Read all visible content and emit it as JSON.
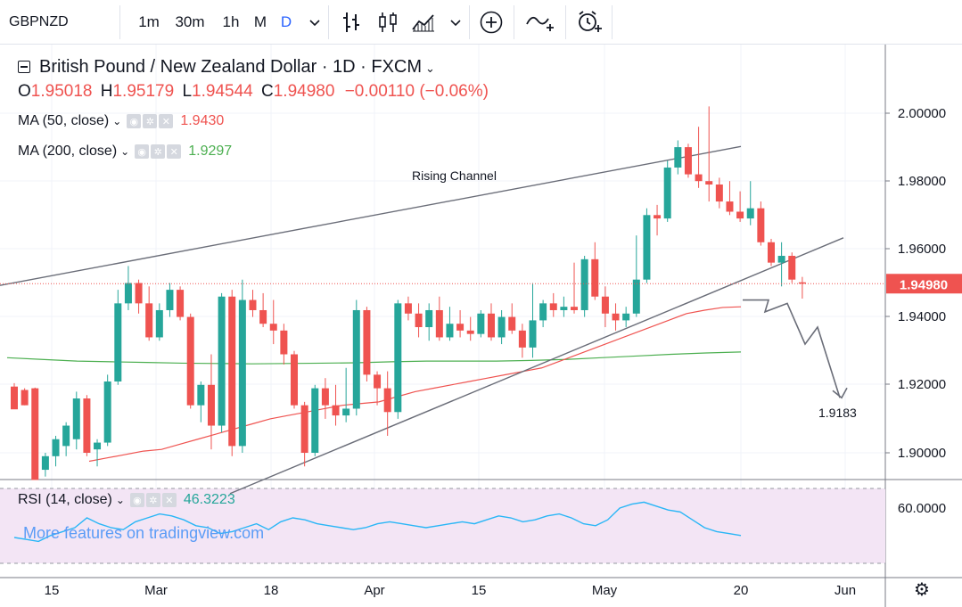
{
  "toolbar": {
    "symbol": "GBPNZD",
    "timeframes": [
      "1m",
      "30m",
      "1h",
      "M",
      "D"
    ],
    "active_timeframe": "D",
    "icons": [
      "chevron-down-icon",
      "bar-chart-icon",
      "candles-icon",
      "area-chart-icon",
      "chevron-down-icon",
      "add-indicator-icon",
      "compare-icon",
      "alert-icon"
    ]
  },
  "legend": {
    "title": "British Pound / New Zealand Dollar · 1D · FXCM",
    "open_label": "O",
    "open": "1.95018",
    "high_label": "H",
    "high": "1.95179",
    "low_label": "L",
    "low": "1.94544",
    "close_label": "C",
    "close": "1.94980",
    "change": "−0.00110 (−0.06%)",
    "ma50_label": "MA (50, close)",
    "ma50_value": "1.9430",
    "ma200_label": "MA (200, close)",
    "ma200_value": "1.9297",
    "rsi_label": "RSI (14, close)",
    "rsi_value": "46.3223"
  },
  "watermark": "More features on tradingview.com",
  "colors": {
    "up": "#26a69a",
    "down": "#ef5350",
    "ma50": "#ef5350",
    "ma200": "#4caf50",
    "rsi": "#29b6f6",
    "rsi_band": "#f3e5f5",
    "accent": "#2962ff"
  },
  "chart_data": {
    "type": "candlestick",
    "title": "British Pound / New Zealand Dollar · 1D · FXCM",
    "ylim": [
      1.8925,
      2.0035
    ],
    "y_ticks": [
      "2.00000",
      "1.98000",
      "1.96000",
      "1.94000",
      "1.92000",
      "1.90000"
    ],
    "x_ticks": [
      "15",
      "Mar",
      "18",
      "Apr",
      "15",
      "May",
      "20",
      "Jun"
    ],
    "last_price": "1.94980",
    "annotations": [
      "Rising Channel",
      "1.9183"
    ],
    "candles": [
      {
        "o": 1.9195,
        "h": 1.9205,
        "l": 1.913,
        "c": 1.9128
      },
      {
        "o": 1.9185,
        "h": 1.919,
        "l": 1.914,
        "c": 1.914
      },
      {
        "o": 1.919,
        "h": 1.9192,
        "l": 1.892,
        "c": 1.892
      },
      {
        "o": 1.895,
        "h": 1.9,
        "l": 1.893,
        "c": 1.899
      },
      {
        "o": 1.899,
        "h": 1.905,
        "l": 1.896,
        "c": 1.904
      },
      {
        "o": 1.902,
        "h": 1.909,
        "l": 1.899,
        "c": 1.908
      },
      {
        "o": 1.904,
        "h": 1.918,
        "l": 1.901,
        "c": 1.916
      },
      {
        "o": 1.916,
        "h": 1.917,
        "l": 1.899,
        "c": 1.9
      },
      {
        "o": 1.901,
        "h": 1.904,
        "l": 1.896,
        "c": 1.903
      },
      {
        "o": 1.903,
        "h": 1.923,
        "l": 1.902,
        "c": 1.921
      },
      {
        "o": 1.921,
        "h": 1.948,
        "l": 1.92,
        "c": 1.944
      },
      {
        "o": 1.944,
        "h": 1.955,
        "l": 1.942,
        "c": 1.95
      },
      {
        "o": 1.95,
        "h": 1.951,
        "l": 1.941,
        "c": 1.944
      },
      {
        "o": 1.944,
        "h": 1.949,
        "l": 1.933,
        "c": 1.934
      },
      {
        "o": 1.934,
        "h": 1.944,
        "l": 1.933,
        "c": 1.942
      },
      {
        "o": 1.942,
        "h": 1.95,
        "l": 1.94,
        "c": 1.948
      },
      {
        "o": 1.948,
        "h": 1.949,
        "l": 1.939,
        "c": 1.94
      },
      {
        "o": 1.94,
        "h": 1.941,
        "l": 1.913,
        "c": 1.914
      },
      {
        "o": 1.914,
        "h": 1.921,
        "l": 1.909,
        "c": 1.92
      },
      {
        "o": 1.92,
        "h": 1.929,
        "l": 1.901,
        "c": 1.908
      },
      {
        "o": 1.908,
        "h": 1.947,
        "l": 1.906,
        "c": 1.946
      },
      {
        "o": 1.946,
        "h": 1.948,
        "l": 1.899,
        "c": 1.902
      },
      {
        "o": 1.902,
        "h": 1.951,
        "l": 1.9,
        "c": 1.945
      },
      {
        "o": 1.945,
        "h": 1.948,
        "l": 1.94,
        "c": 1.942
      },
      {
        "o": 1.942,
        "h": 1.947,
        "l": 1.937,
        "c": 1.938
      },
      {
        "o": 1.938,
        "h": 1.945,
        "l": 1.932,
        "c": 1.936
      },
      {
        "o": 1.936,
        "h": 1.938,
        "l": 1.926,
        "c": 1.929
      },
      {
        "o": 1.929,
        "h": 1.93,
        "l": 1.913,
        "c": 1.914
      },
      {
        "o": 1.914,
        "h": 1.915,
        "l": 1.896,
        "c": 1.9
      },
      {
        "o": 1.9,
        "h": 1.92,
        "l": 1.899,
        "c": 1.919
      },
      {
        "o": 1.919,
        "h": 1.922,
        "l": 1.91,
        "c": 1.914
      },
      {
        "o": 1.914,
        "h": 1.92,
        "l": 1.908,
        "c": 1.911
      },
      {
        "o": 1.911,
        "h": 1.925,
        "l": 1.909,
        "c": 1.913
      },
      {
        "o": 1.913,
        "h": 1.945,
        "l": 1.911,
        "c": 1.942
      },
      {
        "o": 1.942,
        "h": 1.943,
        "l": 1.921,
        "c": 1.923
      },
      {
        "o": 1.923,
        "h": 1.924,
        "l": 1.914,
        "c": 1.919
      },
      {
        "o": 1.919,
        "h": 1.924,
        "l": 1.905,
        "c": 1.912
      },
      {
        "o": 1.912,
        "h": 1.945,
        "l": 1.91,
        "c": 1.944
      },
      {
        "o": 1.944,
        "h": 1.946,
        "l": 1.939,
        "c": 1.941
      },
      {
        "o": 1.941,
        "h": 1.944,
        "l": 1.934,
        "c": 1.937
      },
      {
        "o": 1.937,
        "h": 1.944,
        "l": 1.933,
        "c": 1.942
      },
      {
        "o": 1.942,
        "h": 1.946,
        "l": 1.933,
        "c": 1.934
      },
      {
        "o": 1.934,
        "h": 1.943,
        "l": 1.933,
        "c": 1.938
      },
      {
        "o": 1.938,
        "h": 1.942,
        "l": 1.934,
        "c": 1.936
      },
      {
        "o": 1.936,
        "h": 1.94,
        "l": 1.933,
        "c": 1.935
      },
      {
        "o": 1.935,
        "h": 1.942,
        "l": 1.934,
        "c": 1.941
      },
      {
        "o": 1.941,
        "h": 1.944,
        "l": 1.933,
        "c": 1.934
      },
      {
        "o": 1.934,
        "h": 1.942,
        "l": 1.932,
        "c": 1.94
      },
      {
        "o": 1.94,
        "h": 1.944,
        "l": 1.935,
        "c": 1.936
      },
      {
        "o": 1.936,
        "h": 1.938,
        "l": 1.928,
        "c": 1.931
      },
      {
        "o": 1.931,
        "h": 1.95,
        "l": 1.928,
        "c": 1.939
      },
      {
        "o": 1.939,
        "h": 1.945,
        "l": 1.937,
        "c": 1.944
      },
      {
        "o": 1.944,
        "h": 1.947,
        "l": 1.94,
        "c": 1.942
      },
      {
        "o": 1.942,
        "h": 1.946,
        "l": 1.94,
        "c": 1.943
      },
      {
        "o": 1.943,
        "h": 1.956,
        "l": 1.941,
        "c": 1.942
      },
      {
        "o": 1.942,
        "h": 1.958,
        "l": 1.94,
        "c": 1.957
      },
      {
        "o": 1.957,
        "h": 1.962,
        "l": 1.945,
        "c": 1.946
      },
      {
        "o": 1.946,
        "h": 1.949,
        "l": 1.937,
        "c": 1.941
      },
      {
        "o": 1.941,
        "h": 1.944,
        "l": 1.936,
        "c": 1.939
      },
      {
        "o": 1.939,
        "h": 1.943,
        "l": 1.937,
        "c": 1.941
      },
      {
        "o": 1.941,
        "h": 1.964,
        "l": 1.94,
        "c": 1.951
      },
      {
        "o": 1.951,
        "h": 1.972,
        "l": 1.95,
        "c": 1.97
      },
      {
        "o": 1.97,
        "h": 1.973,
        "l": 1.964,
        "c": 1.969
      },
      {
        "o": 1.969,
        "h": 1.986,
        "l": 1.968,
        "c": 1.984
      },
      {
        "o": 1.984,
        "h": 1.992,
        "l": 1.982,
        "c": 1.99
      },
      {
        "o": 1.99,
        "h": 1.991,
        "l": 1.981,
        "c": 1.982
      },
      {
        "o": 1.982,
        "h": 1.996,
        "l": 1.978,
        "c": 1.98
      },
      {
        "o": 1.98,
        "h": 2.002,
        "l": 1.974,
        "c": 1.979
      },
      {
        "o": 1.979,
        "h": 1.981,
        "l": 1.972,
        "c": 1.974
      },
      {
        "o": 1.974,
        "h": 1.98,
        "l": 1.97,
        "c": 1.971
      },
      {
        "o": 1.971,
        "h": 1.977,
        "l": 1.968,
        "c": 1.969
      },
      {
        "o": 1.969,
        "h": 1.98,
        "l": 1.967,
        "c": 1.972
      },
      {
        "o": 1.972,
        "h": 1.974,
        "l": 1.961,
        "c": 1.962
      },
      {
        "o": 1.962,
        "h": 1.963,
        "l": 1.955,
        "c": 1.956
      },
      {
        "o": 1.956,
        "h": 1.962,
        "l": 1.949,
        "c": 1.958
      },
      {
        "o": 1.958,
        "h": 1.959,
        "l": 1.95,
        "c": 1.951
      },
      {
        "o": 1.9502,
        "h": 1.9518,
        "l": 1.9454,
        "c": 1.9498
      }
    ],
    "ma50": [
      1.8975,
      1.8985,
      1.8995,
      1.9005,
      1.901,
      1.9025,
      1.904,
      1.9055,
      1.907,
      1.9085,
      1.91,
      1.911,
      1.912,
      1.913,
      1.914,
      1.9145,
      1.915,
      1.9165,
      1.918,
      1.919,
      1.92,
      1.921,
      1.922,
      1.923,
      1.924,
      1.925,
      1.927,
      1.929,
      1.931,
      1.933,
      1.935,
      1.937,
      1.939,
      1.941,
      1.942,
      1.9428,
      1.943
    ],
    "ma200": [
      1.928,
      1.9275,
      1.927,
      1.9268,
      1.9266,
      1.9264,
      1.9263,
      1.9262,
      1.9263,
      1.9264,
      1.9265,
      1.9268,
      1.927,
      1.927,
      1.927,
      1.9272,
      1.9275,
      1.928,
      1.9285,
      1.929,
      1.9294,
      1.9297
    ],
    "channel": {
      "upper": [
        [
          1.9493,
          1.9902
        ]
      ],
      "lower": [
        [
          1.888,
          1.9633
        ]
      ]
    },
    "projection": [
      1.945,
      1.945,
      1.9415,
      1.944,
      1.932,
      1.937,
      1.9183
    ],
    "rsi_ticks": [
      "60.0000"
    ],
    "rsi": [
      45,
      44,
      43,
      46,
      48,
      50,
      55,
      52,
      50,
      49,
      53,
      55,
      57,
      56,
      54,
      51,
      50,
      47,
      48,
      50,
      52,
      49,
      53,
      55,
      54,
      52,
      51,
      50,
      49,
      50,
      52,
      53,
      52,
      51,
      50,
      51,
      52,
      53,
      52,
      54,
      56,
      55,
      53,
      54,
      56,
      57,
      55,
      52,
      51,
      54,
      60,
      62,
      63,
      61,
      59,
      58,
      54,
      50,
      48,
      47,
      46
    ]
  }
}
